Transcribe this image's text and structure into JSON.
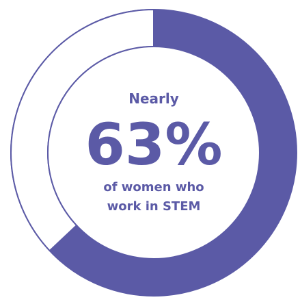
{
  "chart_data": {
    "type": "pie",
    "style": "donut",
    "categories": [
      "of women who work in STEM",
      "remainder"
    ],
    "values": [
      63,
      37
    ],
    "colors": {
      "filled": "#5b5aa6",
      "remainder": "#ffffff",
      "outline": "#5b5aa6",
      "text": "#5b5aa6"
    },
    "annotation": {
      "prefix": "Nearly",
      "value": "63%",
      "caption_line1": "of women who",
      "caption_line2": "work in STEM"
    }
  }
}
